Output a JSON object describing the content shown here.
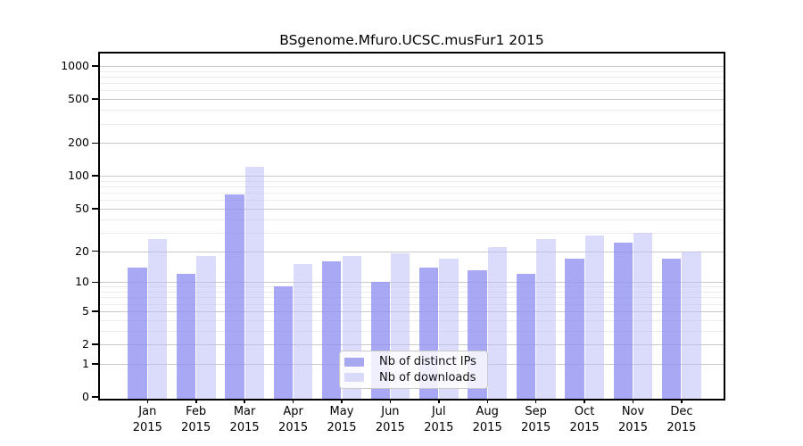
{
  "title": "BSgenome.Mfuro.UCSC.musFur1 2015",
  "chart_data": {
    "type": "bar",
    "title": "BSgenome.Mfuro.UCSC.musFur1 2015",
    "categories": [
      "Jan",
      "Feb",
      "Mar",
      "Apr",
      "May",
      "Jun",
      "Jul",
      "Aug",
      "Sep",
      "Oct",
      "Nov",
      "Dec"
    ],
    "x_tick_year": "2015",
    "series": [
      {
        "name": "Nb of distinct IPs",
        "color": "#a8a8f1",
        "fill": "rgba(146,146,243,0.8)",
        "values": [
          14,
          12,
          68,
          9,
          16,
          10,
          14,
          13,
          12,
          17,
          24,
          17
        ]
      },
      {
        "name": "Nb of downloads",
        "color": "#d9d9f8",
        "fill": "rgba(189,189,248,0.55)",
        "values": [
          26,
          18,
          122,
          15,
          18,
          19,
          17,
          22,
          26,
          28,
          30,
          20
        ]
      }
    ],
    "ylabel": "",
    "xlabel": "",
    "ylim": [
      0,
      1000
    ],
    "y_scale": "pseudo-log log10(1+y)",
    "y_major_ticks": [
      0,
      1,
      2,
      5,
      10,
      20,
      50,
      100,
      200,
      500,
      1000
    ],
    "y_minor_gridlines": [
      3,
      4,
      6,
      7,
      8,
      9,
      30,
      40,
      60,
      70,
      80,
      90,
      300,
      400,
      600,
      700,
      800,
      900
    ],
    "grid": true,
    "legend_position": "inside-bottom-center"
  },
  "legend": {
    "item1": "Nb of distinct IPs",
    "item2": "Nb of downloads"
  },
  "colors": {
    "bar_distinct_ips": "#a8a8f1",
    "bar_downloads": "#d9d9f8",
    "major_gridline": "#c9c9c9",
    "minor_gridline": "#ececec",
    "plot_border": "#000000",
    "background": "#ffffff",
    "text": "#000000"
  }
}
